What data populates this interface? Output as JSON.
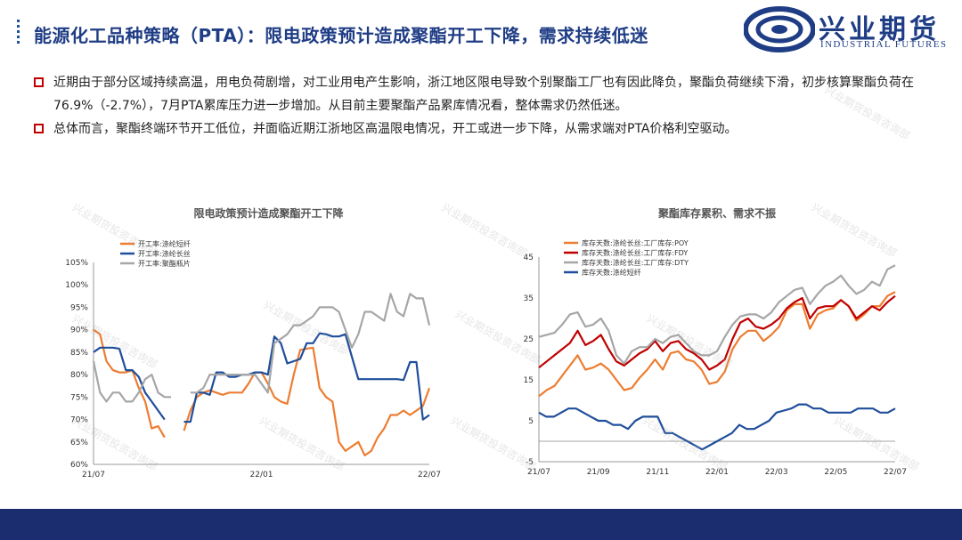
{
  "header": {
    "title": "能源化工品种策略（PTA）：限电政策预计造成聚酯开工下降，需求持续低迷",
    "logo_cn": "兴业期货",
    "logo_en": "INDUSTRIAL FUTURES"
  },
  "bullets": [
    "近期由于部分区域持续高温，用电负荷剧增，对工业用电产生影响，浙江地区限电导致个别聚酯工厂也有因此降负，聚酯负荷继续下滑，初步核算聚酯负荷在76.9%（-2.7%），7月PTA累库压力进一步增加。从目前主要聚酯产品累库情况看，整体需求仍然低迷。",
    "总体而言，聚酯终端环节开工低位，并面临近期江浙地区高温限电情况，开工或进一步下降，从需求端对PTA价格利空驱动。"
  ],
  "watermark": "兴业期货投资咨询部",
  "colors": {
    "title": "#1f3d85",
    "bullet_box": "#c00000",
    "footer": "#1b2d6e",
    "orange": "#ed7d31",
    "blue": "#1f4e9c",
    "gray": "#a6a6a6",
    "red": "#c00000"
  },
  "chart_data": [
    {
      "type": "line",
      "title": "限电政策预计造成聚酯开工下降",
      "xlabel": "",
      "ylabel": "",
      "ylim": [
        60,
        105
      ],
      "y_ticks": [
        "60%",
        "65%",
        "70%",
        "75%",
        "80%",
        "85%",
        "90%",
        "95%",
        "100%",
        "105%"
      ],
      "x_ticks": [
        "21/07",
        "22/01",
        "22/07"
      ],
      "legend_position": "top-left",
      "grid": false,
      "series": [
        {
          "name": "开工率:涤纶短纤",
          "color": "orange",
          "values": [
            90,
            89,
            83,
            81,
            80.5,
            80.5,
            81,
            77,
            74,
            68,
            68.5,
            66,
            null,
            null,
            67.5,
            72,
            75,
            76,
            76.5,
            76,
            75.5,
            76,
            76,
            76,
            78,
            80.5,
            80.5,
            78,
            75,
            74,
            73.5,
            80,
            85.5,
            85.8,
            86,
            77,
            75,
            74,
            65,
            63,
            64,
            65,
            62,
            63,
            66,
            68,
            71,
            71,
            72,
            71,
            72,
            73,
            77
          ]
        },
        {
          "name": "开工率:涤纶长丝",
          "color": "blue",
          "values": [
            85,
            86,
            86,
            86,
            85.8,
            81,
            81,
            79.5,
            76,
            74,
            72,
            70,
            null,
            null,
            69.5,
            69.5,
            76,
            76,
            75.5,
            80.5,
            80.5,
            79.5,
            79.5,
            80,
            80,
            80.5,
            80.5,
            80,
            88.5,
            87,
            82.5,
            83,
            83.5,
            87,
            87,
            89.2,
            89,
            88.5,
            88.5,
            89,
            84,
            79,
            79,
            79,
            79,
            79,
            79,
            79,
            78.8,
            82.8,
            82.8,
            70,
            71
          ]
        },
        {
          "name": "开工率:聚酯瓶片",
          "color": "gray",
          "values": [
            83,
            76,
            74,
            76,
            76,
            74,
            74,
            76,
            79,
            80,
            76,
            75,
            75,
            null,
            null,
            76,
            76,
            77,
            80,
            80,
            80,
            80,
            80,
            80,
            80,
            80,
            78,
            76,
            87,
            88,
            89,
            91,
            91,
            92,
            93,
            95,
            95,
            95,
            94,
            90,
            86,
            89,
            94,
            94,
            93,
            92,
            98,
            94,
            93,
            98,
            97,
            97,
            91
          ]
        }
      ]
    },
    {
      "type": "line",
      "title": "聚酯库存累积、需求不振",
      "xlabel": "",
      "ylabel": "",
      "ylim": [
        -5,
        45
      ],
      "y_ticks": [
        "-5",
        "5",
        "15",
        "25",
        "35",
        "45"
      ],
      "x_ticks": [
        "21/07",
        "21/09",
        "21/11",
        "22/01",
        "22/03",
        "22/05",
        "22/07"
      ],
      "legend_position": "top-left",
      "grid": false,
      "series": [
        {
          "name": "库存天数:涤纶长丝:工厂库存:POY",
          "color": "orange",
          "values": [
            11,
            12.5,
            13.5,
            16,
            18.5,
            21,
            17.5,
            18,
            19,
            17.5,
            15,
            12.5,
            13,
            15.5,
            17.5,
            20,
            17.5,
            21.5,
            22,
            20,
            19.5,
            17.5,
            14,
            14.5,
            17,
            22.5,
            25.5,
            27,
            27,
            24.5,
            26,
            28,
            32,
            33.5,
            33.5,
            27.5,
            31,
            32,
            32.5,
            34.5,
            33,
            29.5,
            31,
            33,
            33,
            35.5,
            36.5
          ]
        },
        {
          "name": "库存天数:涤纶长丝:工厂库存:FDY",
          "color": "red",
          "values": [
            18,
            19.5,
            21,
            22.5,
            24,
            27,
            23.5,
            24.5,
            26,
            22.5,
            19.5,
            18.5,
            20,
            21.5,
            22.5,
            24.5,
            22,
            24,
            24.5,
            22.5,
            21.5,
            20,
            17.5,
            18.5,
            20,
            25,
            29,
            30,
            28,
            27.5,
            28.5,
            30,
            32.5,
            34,
            35,
            30,
            32.5,
            33,
            33,
            34.5,
            33,
            30,
            31.5,
            33,
            32,
            34,
            35.5
          ]
        },
        {
          "name": "库存天数:涤纶长丝:工厂库存:DTY",
          "color": "gray",
          "values": [
            25.5,
            26,
            26.5,
            28.5,
            31,
            31.5,
            28,
            28.5,
            30,
            27,
            21,
            19,
            22,
            23,
            23,
            25,
            24,
            25.5,
            26,
            24,
            22,
            21,
            21,
            22,
            25.5,
            28.5,
            30.5,
            31,
            31,
            30,
            31.5,
            34,
            35.5,
            37,
            37.5,
            33.5,
            36,
            38,
            39,
            40.5,
            38,
            36,
            37,
            39,
            38,
            42,
            43
          ]
        },
        {
          "name": "库存天数:涤纶短纤",
          "color": "blue",
          "values": [
            7,
            6,
            6,
            7,
            8,
            8,
            7,
            6,
            5,
            5,
            4,
            4,
            3,
            5,
            6,
            6,
            6,
            2,
            2,
            1,
            0,
            -1,
            -2,
            -1,
            0,
            1,
            2,
            4,
            3,
            3,
            4,
            5,
            7,
            7.5,
            8,
            9,
            9,
            8,
            8,
            7,
            7,
            7,
            7,
            8,
            8,
            8,
            7,
            7,
            8
          ]
        }
      ]
    }
  ]
}
